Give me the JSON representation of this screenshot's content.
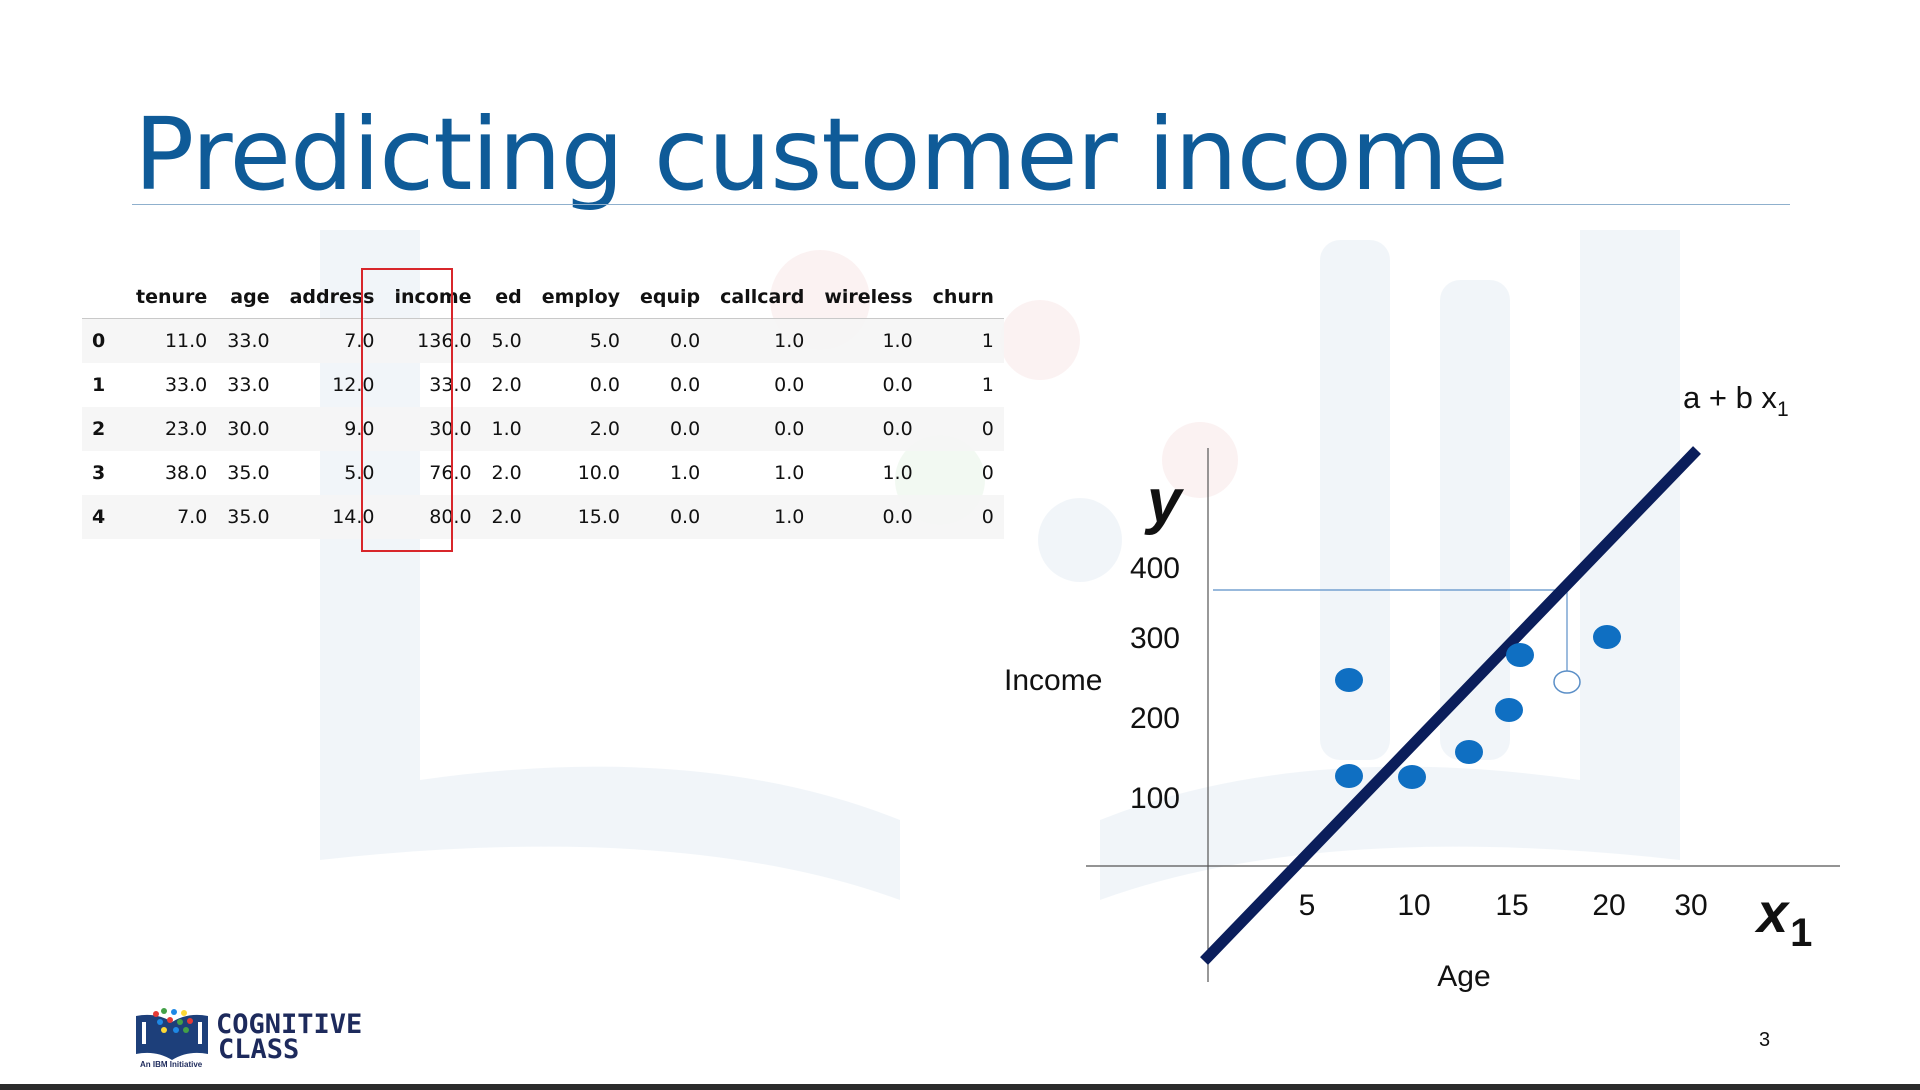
{
  "slide": {
    "title": "Predicting customer income",
    "page_number": "3",
    "title_color": "#0f5b98"
  },
  "table": {
    "columns": [
      "tenure",
      "age",
      "address",
      "income",
      "ed",
      "employ",
      "equip",
      "callcard",
      "wireless",
      "churn"
    ],
    "highlighted_column": "income",
    "rows": [
      {
        "index": "0",
        "cells": [
          "11.0",
          "33.0",
          "7.0",
          "136.0",
          "5.0",
          "5.0",
          "0.0",
          "1.0",
          "1.0",
          "1"
        ]
      },
      {
        "index": "1",
        "cells": [
          "33.0",
          "33.0",
          "12.0",
          "33.0",
          "2.0",
          "0.0",
          "0.0",
          "0.0",
          "0.0",
          "1"
        ]
      },
      {
        "index": "2",
        "cells": [
          "23.0",
          "30.0",
          "9.0",
          "30.0",
          "1.0",
          "2.0",
          "0.0",
          "0.0",
          "0.0",
          "0"
        ]
      },
      {
        "index": "3",
        "cells": [
          "38.0",
          "35.0",
          "5.0",
          "76.0",
          "2.0",
          "10.0",
          "1.0",
          "1.0",
          "1.0",
          "0"
        ]
      },
      {
        "index": "4",
        "cells": [
          "7.0",
          "35.0",
          "14.0",
          "80.0",
          "2.0",
          "15.0",
          "0.0",
          "1.0",
          "0.0",
          "0"
        ]
      }
    ]
  },
  "diagram": {
    "y_symbol": "y",
    "y_label": "Income",
    "y_ticks": [
      "400",
      "300",
      "200",
      "100"
    ],
    "x_label": "Age",
    "x_ticks": [
      "5",
      "10",
      "15",
      "20",
      "30"
    ],
    "x_symbol": "x",
    "x_symbol_subscript": "1",
    "line_label": "a + b x",
    "line_label_subscript": "1",
    "line_color": "#0b1e5b",
    "point_color": "#0f6fc2",
    "guide_color": "#5b8fc7"
  },
  "logo": {
    "line1": "COGNITIVE",
    "line2": "CLASS",
    "tagline": "An IBM Initiative"
  }
}
